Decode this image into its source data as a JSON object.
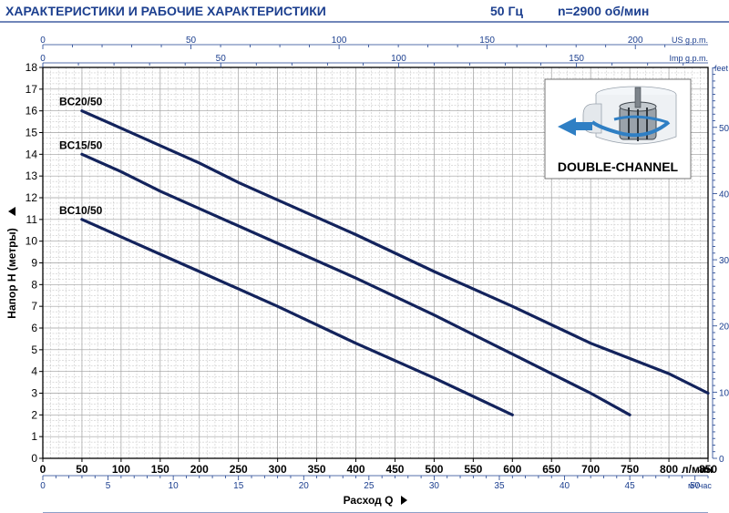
{
  "header": {
    "title": "ХАРАКТЕРИСТИКИ И РАБОЧИЕ ХАРАКТЕРИСТИКИ",
    "frequency": "50 Гц",
    "speed": "n=2900 об/мин"
  },
  "badge": {
    "label": "DOUBLE-CHANNEL",
    "icon": "double-channel-impeller-icon"
  },
  "colors": {
    "header": "#1c3f8f",
    "curve": "#13235c",
    "secondary_axis": "#1c3f8f"
  },
  "chart_data": {
    "type": "line",
    "title": "",
    "xlabel": "Расход Q",
    "ylabel": "Напор H (метры)",
    "x_unit": "л/мин",
    "xlim": [
      0,
      850
    ],
    "ylim": [
      0,
      18
    ],
    "x_ticks": [
      0,
      50,
      100,
      150,
      200,
      250,
      300,
      350,
      400,
      450,
      500,
      550,
      600,
      650,
      700,
      750,
      800,
      850
    ],
    "y_ticks": [
      0,
      1,
      2,
      3,
      4,
      5,
      6,
      7,
      8,
      9,
      10,
      11,
      12,
      13,
      14,
      15,
      16,
      17,
      18
    ],
    "grid": true,
    "series": [
      {
        "name": "BC20/50",
        "x": [
          50,
          100,
          150,
          200,
          250,
          300,
          400,
          500,
          600,
          700,
          800,
          850
        ],
        "y": [
          16,
          15.2,
          14.4,
          13.6,
          12.7,
          11.9,
          10.3,
          8.6,
          7,
          5.3,
          3.9,
          3
        ]
      },
      {
        "name": "BC15/50",
        "x": [
          50,
          100,
          150,
          200,
          300,
          400,
          500,
          600,
          700,
          750
        ],
        "y": [
          14,
          13.2,
          12.3,
          11.5,
          9.9,
          8.3,
          6.6,
          4.8,
          3,
          2
        ]
      },
      {
        "name": "BC10/50",
        "x": [
          50,
          100,
          150,
          200,
          300,
          400,
          500,
          600
        ],
        "y": [
          11,
          10.2,
          9.4,
          8.6,
          7,
          5.3,
          3.7,
          2
        ]
      }
    ],
    "secondary_axes": {
      "us_gpm": {
        "unit": "US g.p.m.",
        "ticks": [
          0,
          50,
          100,
          150,
          200
        ]
      },
      "imp_gpm": {
        "unit": "Imp g.p.m.",
        "ticks": [
          0,
          50,
          100,
          150
        ]
      },
      "m3h": {
        "unit": "м³/час",
        "ticks": [
          0,
          5,
          10,
          15,
          20,
          25,
          30,
          35,
          40,
          45,
          50
        ]
      },
      "feet": {
        "unit": "feet",
        "ticks": [
          0,
          10,
          20,
          30,
          40,
          50
        ]
      }
    }
  }
}
